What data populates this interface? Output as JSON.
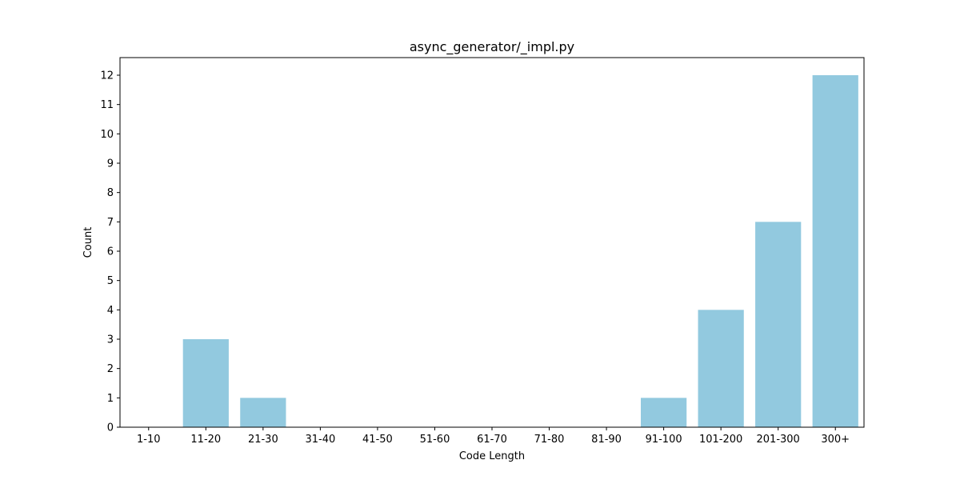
{
  "chart_data": {
    "type": "bar",
    "title": "async_generator/_impl.py",
    "xlabel": "Code Length",
    "ylabel": "Count",
    "categories": [
      "1-10",
      "11-20",
      "21-30",
      "31-40",
      "41-50",
      "51-60",
      "61-70",
      "71-80",
      "81-90",
      "91-100",
      "101-200",
      "201-300",
      "300+"
    ],
    "values": [
      0,
      3,
      1,
      0,
      0,
      0,
      0,
      0,
      0,
      1,
      4,
      7,
      12
    ],
    "ylim": [
      0,
      12.6
    ],
    "yticks": [
      0,
      1,
      2,
      3,
      4,
      5,
      6,
      7,
      8,
      9,
      10,
      11,
      12
    ],
    "grid": false,
    "bar_color": "#92c9df"
  }
}
